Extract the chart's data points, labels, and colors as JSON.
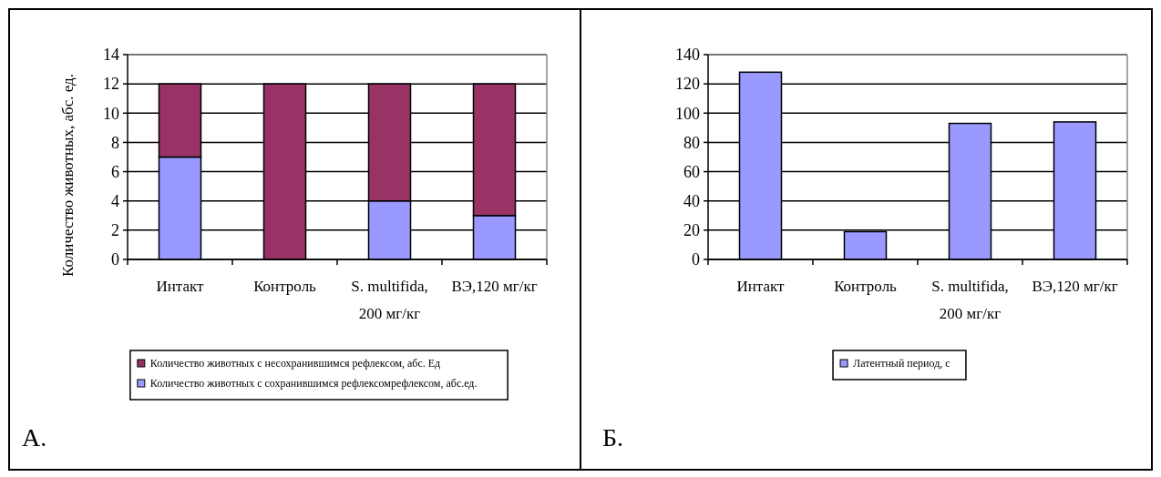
{
  "chart_data": [
    {
      "type": "bar",
      "stacked": true,
      "ylabel": "Количество животных, абс. ед.",
      "categories": [
        "Интакт",
        "Контроль",
        "S. multifida, 200 мг/кг",
        "ВЭ,120 мг/кг"
      ],
      "series": [
        {
          "name": "Количество животных с сохранившимся рефлексомрефлексом, абс.ед.",
          "color": "#9999ff",
          "values": [
            7,
            0,
            4,
            3
          ]
        },
        {
          "name": "Количество животных с несохранившимся рефлексом, абс. Ед",
          "color": "#993366",
          "values": [
            5,
            12,
            8,
            9
          ]
        }
      ],
      "ylim": [
        0,
        14
      ],
      "yticks": [
        0,
        2,
        4,
        6,
        8,
        10,
        12,
        14
      ],
      "grid": "y",
      "legend": "bottom",
      "annotations": [
        "А."
      ]
    },
    {
      "type": "bar",
      "categories": [
        "Интакт",
        "Контроль",
        "S. multifida, 200 мг/кг",
        "ВЭ,120 мг/кг"
      ],
      "series": [
        {
          "name": "Латентный период, с",
          "color": "#9999ff",
          "values": [
            128,
            19,
            93,
            94
          ]
        }
      ],
      "ylim": [
        0,
        140
      ],
      "yticks": [
        0,
        20,
        40,
        60,
        80,
        100,
        120,
        140
      ],
      "grid": "y",
      "legend": "bottom",
      "annotations": [
        "Б."
      ]
    }
  ]
}
